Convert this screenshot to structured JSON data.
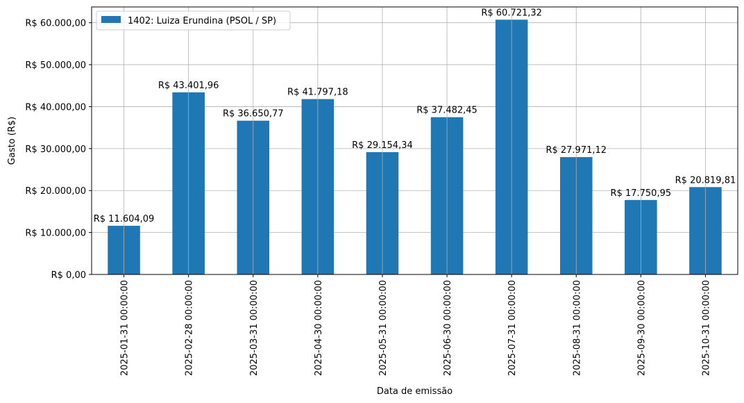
{
  "chart_data": {
    "type": "bar",
    "categories": [
      "2025-01-31 00:00:00",
      "2025-02-28 00:00:00",
      "2025-03-31 00:00:00",
      "2025-04-30 00:00:00",
      "2025-05-31 00:00:00",
      "2025-06-30 00:00:00",
      "2025-07-31 00:00:00",
      "2025-08-31 00:00:00",
      "2025-09-30 00:00:00",
      "2025-10-31 00:00:00"
    ],
    "series": [
      {
        "name": "1402: Luiza Erundina (PSOL / SP)",
        "color": "#1f77b4",
        "values": [
          11604.09,
          43401.96,
          36650.77,
          41797.18,
          29154.34,
          37482.45,
          60721.32,
          27971.12,
          17750.95,
          20819.81
        ]
      }
    ],
    "data_labels": [
      "R$ 11.604,09",
      "R$ 43.401,96",
      "R$ 36.650,77",
      "R$ 41.797,18",
      "R$ 29.154,34",
      "R$ 37.482,45",
      "R$ 60.721,32",
      "R$ 27.971,12",
      "R$ 17.750,95",
      "R$ 20.819,81"
    ],
    "yticks": [
      0,
      10000,
      20000,
      30000,
      40000,
      50000,
      60000
    ],
    "ytick_labels": [
      "R$ 0,00",
      "R$ 10.000,00",
      "R$ 20.000,00",
      "R$ 30.000,00",
      "R$ 40.000,00",
      "R$ 50.000,00",
      "R$ 60.000,00"
    ],
    "ylim": [
      0,
      63757
    ],
    "title": "",
    "xlabel": "Data de emissão",
    "ylabel": "Gasto (R$)",
    "grid": true,
    "legend_position": "top-left"
  }
}
